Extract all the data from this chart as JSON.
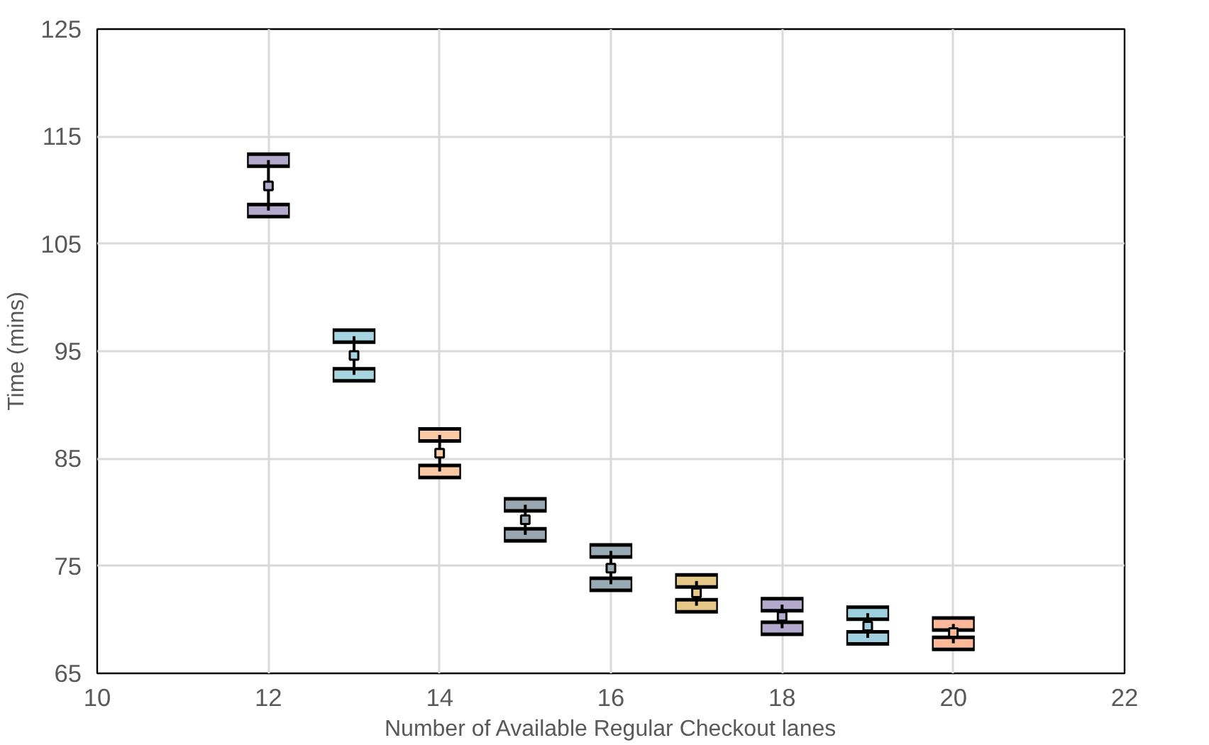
{
  "chart_data": {
    "type": "scatter",
    "xlabel": "Number of Available Regular Checkout lanes",
    "ylabel": "Time (mins)",
    "x": [
      12,
      13,
      14,
      15,
      16,
      17,
      18,
      19,
      20
    ],
    "values": [
      110.4,
      94.6,
      85.5,
      79.3,
      74.8,
      72.5,
      70.3,
      69.4,
      68.8
    ],
    "errors": [
      [
        108.1,
        112.8
      ],
      [
        92.8,
        96.4
      ],
      [
        83.8,
        87.2
      ],
      [
        77.9,
        80.7
      ],
      [
        73.3,
        76.4
      ],
      [
        71.3,
        73.6
      ],
      [
        69.2,
        71.4
      ],
      [
        68.3,
        70.6
      ],
      [
        67.8,
        69.6
      ]
    ],
    "colors": [
      "#b3a9cc",
      "#a6d4e0",
      "#fbc9a4",
      "#9aa6b0",
      "#98aab3",
      "#e6c888",
      "#b3a9cc",
      "#9ecfe0",
      "#fbb99a"
    ],
    "marker": "square",
    "xlim": [
      10,
      22
    ],
    "xticks": [
      10,
      12,
      14,
      16,
      18,
      20,
      22
    ],
    "ylim": [
      65,
      125
    ],
    "yticks": [
      65,
      75,
      85,
      95,
      105,
      115,
      125
    ],
    "grid": true
  }
}
